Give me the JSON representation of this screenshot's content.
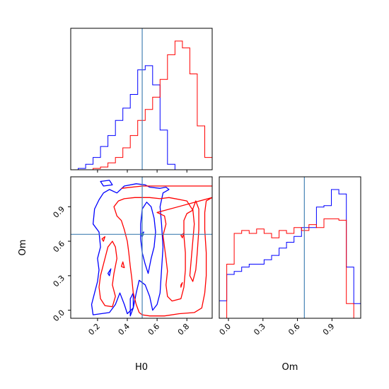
{
  "chart_data": {
    "type": "corner",
    "parameters": [
      "H0",
      "Om"
    ],
    "truth": {
      "H0": 0.5,
      "Om": 0.66
    },
    "colors": {
      "series_a": "#0000ff",
      "series_b": "#ff0000",
      "truth": "#4682b4"
    },
    "panels": [
      {
        "id": "hist-H0",
        "type": "step-histogram",
        "xlim": [
          0.02,
          0.97
        ],
        "xticks": [
          0.2,
          0.4,
          0.6,
          0.8
        ],
        "series": [
          {
            "color": "#0000ff",
            "edges": [
              0.02,
              0.07,
              0.12,
              0.17,
              0.22,
              0.27,
              0.32,
              0.37,
              0.42,
              0.47,
              0.52,
              0.57,
              0.62,
              0.67,
              0.72,
              0.77,
              0.82,
              0.87,
              0.92,
              0.97
            ],
            "counts": [
              0,
              1,
              4,
              9,
              17,
              25,
              36,
              45,
              55,
              73,
              76,
              62,
              29,
              4,
              0,
              0,
              0,
              0,
              0
            ]
          },
          {
            "color": "#ff0000",
            "edges": [
              0.02,
              0.07,
              0.12,
              0.17,
              0.22,
              0.27,
              0.32,
              0.37,
              0.42,
              0.47,
              0.52,
              0.57,
              0.62,
              0.67,
              0.72,
              0.77,
              0.82,
              0.87,
              0.92,
              0.97
            ],
            "counts": [
              0,
              0,
              0,
              1,
              2,
              5,
              9,
              16,
              25,
              36,
              44,
              53,
              66,
              84,
              94,
              89,
              70,
              32,
              9
            ]
          }
        ]
      },
      {
        "id": "hist-Om",
        "type": "step-histogram",
        "xlim": [
          -0.08,
          1.15
        ],
        "xticks": [
          0.0,
          0.3,
          0.6,
          0.9
        ],
        "series": [
          {
            "color": "#0000ff",
            "edges": [
              -0.08,
              -0.015,
              0.05,
              0.115,
              0.18,
              0.245,
              0.31,
              0.375,
              0.44,
              0.505,
              0.57,
              0.635,
              0.7,
              0.765,
              0.83,
              0.895,
              0.96,
              1.025,
              1.09,
              1.15
            ],
            "counts": [
              12,
              30,
              32,
              35,
              37,
              37,
              40,
              43,
              48,
              52,
              56,
              62,
              62,
              76,
              77,
              88,
              85,
              35,
              10
            ]
          },
          {
            "color": "#ff0000",
            "edges": [
              -0.08,
              -0.015,
              0.05,
              0.115,
              0.18,
              0.245,
              0.31,
              0.375,
              0.44,
              0.505,
              0.57,
              0.635,
              0.7,
              0.765,
              0.83,
              0.895,
              0.96,
              1.025,
              1.09,
              1.15
            ],
            "counts": [
              0,
              37,
              58,
              60,
              58,
              61,
              58,
              55,
              60,
              58,
              62,
              60,
              64,
              62,
              68,
              68,
              67,
              10,
              0
            ]
          }
        ]
      },
      {
        "id": "contour-H0-Om",
        "type": "contour",
        "xlabel": "H0",
        "ylabel": "Om",
        "xlim": [
          0.02,
          0.97
        ],
        "ylim": [
          -0.07,
          1.16
        ],
        "xticks": [
          0.2,
          0.4,
          0.6,
          0.8
        ],
        "yticks": [
          0.0,
          0.3,
          0.6,
          0.9
        ],
        "series": [
          {
            "color": "#0000ff",
            "contours": [
              [
                [
                  0.22,
                  1.12
                ],
                [
                  0.28,
                  1.13
                ],
                [
                  0.3,
                  1.09
                ],
                [
                  0.24,
                  1.08
                ]
              ],
              [
                [
                  0.33,
                  1.02
                ],
                [
                  0.38,
                  1.08
                ],
                [
                  0.46,
                  1.1
                ],
                [
                  0.52,
                  1.09
                ],
                [
                  0.55,
                  1.07
                ],
                [
                  0.62,
                  1.06
                ],
                [
                  0.66,
                  1.07
                ],
                [
                  0.68,
                  1.05
                ],
                [
                  0.64,
                  1.02
                ],
                [
                  0.62,
                  0.9
                ],
                [
                  0.63,
                  0.75
                ],
                [
                  0.64,
                  0.55
                ],
                [
                  0.63,
                  0.35
                ],
                [
                  0.62,
                  0.15
                ],
                [
                  0.6,
                  0.05
                ],
                [
                  0.57,
                  0.0
                ],
                [
                  0.55,
                  0.12
                ],
                [
                  0.52,
                  0.22
                ],
                [
                  0.48,
                  0.26
                ],
                [
                  0.46,
                  0.15
                ],
                [
                  0.44,
                  0.02
                ],
                [
                  0.4,
                  -0.03
                ],
                [
                  0.38,
                  0.05
                ],
                [
                  0.35,
                  0.15
                ],
                [
                  0.32,
                  0.05
                ],
                [
                  0.28,
                  -0.02
                ],
                [
                  0.17,
                  -0.04
                ],
                [
                  0.16,
                  0.05
                ],
                [
                  0.18,
                  0.15
                ],
                [
                  0.2,
                  0.25
                ],
                [
                  0.21,
                  0.35
                ],
                [
                  0.2,
                  0.45
                ],
                [
                  0.22,
                  0.55
                ],
                [
                  0.21,
                  0.68
                ],
                [
                  0.17,
                  0.75
                ],
                [
                  0.18,
                  0.88
                ],
                [
                  0.21,
                  0.96
                ],
                [
                  0.24,
                  1.02
                ],
                [
                  0.28,
                  1.05
                ],
                [
                  0.33,
                  1.02
                ]
              ],
              [
                [
                  0.53,
                  0.94
                ],
                [
                  0.56,
                  0.9
                ],
                [
                  0.58,
                  0.8
                ],
                [
                  0.59,
                  0.68
                ],
                [
                  0.58,
                  0.55
                ],
                [
                  0.56,
                  0.45
                ],
                [
                  0.54,
                  0.32
                ],
                [
                  0.52,
                  0.4
                ],
                [
                  0.5,
                  0.5
                ],
                [
                  0.49,
                  0.62
                ],
                [
                  0.49,
                  0.75
                ],
                [
                  0.5,
                  0.88
                ]
              ],
              [
                [
                  0.27,
                  0.32
                ],
                [
                  0.29,
                  0.36
                ],
                [
                  0.28,
                  0.3
                ]
              ],
              [
                [
                  0.49,
                  0.66
                ],
                [
                  0.51,
                  0.68
                ],
                [
                  0.5,
                  0.64
                ]
              ],
              [
                [
                  0.42,
                  0.1
                ],
                [
                  0.44,
                  0.15
                ],
                [
                  0.44,
                  0.02
                ],
                [
                  0.42,
                  -0.05
                ]
              ]
            ]
          },
          {
            "color": "#ff0000",
            "contours": [
              [
                [
                  0.36,
                  1.06
                ],
                [
                  0.5,
                  1.08
                ],
                [
                  0.7,
                  1.08
                ],
                [
                  0.97,
                  1.08
                ]
              ],
              [
                [
                  0.97,
                  0.98
                ],
                [
                  0.93,
                  0.95
                ],
                [
                  0.92,
                  0.85
                ],
                [
                  0.92,
                  0.7
                ],
                [
                  0.93,
                  0.5
                ],
                [
                  0.93,
                  0.3
                ],
                [
                  0.92,
                  0.15
                ],
                [
                  0.9,
                  0.02
                ],
                [
                  0.85,
                  -0.02
                ],
                [
                  0.75,
                  -0.03
                ],
                [
                  0.65,
                  -0.05
                ],
                [
                  0.55,
                  -0.05
                ],
                [
                  0.5,
                  -0.04
                ],
                [
                  0.48,
                  -0.02
                ],
                [
                  0.46,
                  0.05
                ],
                [
                  0.44,
                  0.15
                ],
                [
                  0.43,
                  0.28
                ],
                [
                  0.42,
                  0.38
                ],
                [
                  0.41,
                  0.5
                ],
                [
                  0.4,
                  0.6
                ],
                [
                  0.38,
                  0.7
                ],
                [
                  0.36,
                  0.78
                ],
                [
                  0.33,
                  0.82
                ],
                [
                  0.31,
                  0.9
                ],
                [
                  0.34,
                  0.95
                ],
                [
                  0.38,
                  0.97
                ],
                [
                  0.45,
                  0.98
                ],
                [
                  0.55,
                  0.98
                ],
                [
                  0.62,
                  0.97
                ],
                [
                  0.68,
                  0.98
                ],
                [
                  0.76,
                  0.96
                ],
                [
                  0.8,
                  0.95
                ],
                [
                  0.82,
                  0.91
                ],
                [
                  0.84,
                  0.87
                ],
                [
                  0.8,
                  0.84
                ],
                [
                  0.78,
                  0.78
                ],
                [
                  0.78,
                  0.65
                ],
                [
                  0.79,
                  0.5
                ],
                [
                  0.79,
                  0.35
                ],
                [
                  0.78,
                  0.2
                ],
                [
                  0.76,
                  0.1
                ],
                [
                  0.7,
                  0.08
                ],
                [
                  0.67,
                  0.12
                ],
                [
                  0.66,
                  0.22
                ],
                [
                  0.67,
                  0.34
                ],
                [
                  0.66,
                  0.45
                ],
                [
                  0.65,
                  0.55
                ],
                [
                  0.64,
                  0.65
                ],
                [
                  0.66,
                  0.75
                ],
                [
                  0.65,
                  0.82
                ],
                [
                  0.6,
                  0.85
                ]
              ],
              [
                [
                  0.3,
                  0.6
                ],
                [
                  0.27,
                  0.55
                ],
                [
                  0.25,
                  0.45
                ],
                [
                  0.22,
                  0.3
                ],
                [
                  0.21,
                  0.2
                ],
                [
                  0.22,
                  0.1
                ],
                [
                  0.25,
                  0.04
                ],
                [
                  0.3,
                  0.03
                ],
                [
                  0.32,
                  0.12
                ],
                [
                  0.3,
                  0.22
                ],
                [
                  0.31,
                  0.32
                ],
                [
                  0.33,
                  0.45
                ],
                [
                  0.32,
                  0.55
                ]
              ],
              [
                [
                  0.86,
                  0.95
                ],
                [
                  0.88,
                  0.88
                ],
                [
                  0.88,
                  0.7
                ],
                [
                  0.87,
                  0.5
                ],
                [
                  0.86,
                  0.35
                ],
                [
                  0.84,
                  0.25
                ],
                [
                  0.82,
                  0.3
                ],
                [
                  0.83,
                  0.45
                ],
                [
                  0.84,
                  0.6
                ],
                [
                  0.85,
                  0.75
                ],
                [
                  0.84,
                  0.88
                ]
              ],
              [
                [
                  0.24,
                  0.6
                ],
                [
                  0.25,
                  0.64
                ],
                [
                  0.23,
                  0.62
                ]
              ],
              [
                [
                  0.76,
                  0.65
                ],
                [
                  0.78,
                  0.67
                ],
                [
                  0.77,
                  0.63
                ]
              ],
              [
                [
                  0.76,
                  0.22
                ],
                [
                  0.77,
                  0.24
                ],
                [
                  0.76,
                  0.2
                ]
              ],
              [
                [
                  0.36,
                  0.38
                ],
                [
                  0.37,
                  0.42
                ],
                [
                  0.38,
                  0.37
                ]
              ]
            ]
          }
        ]
      }
    ]
  }
}
